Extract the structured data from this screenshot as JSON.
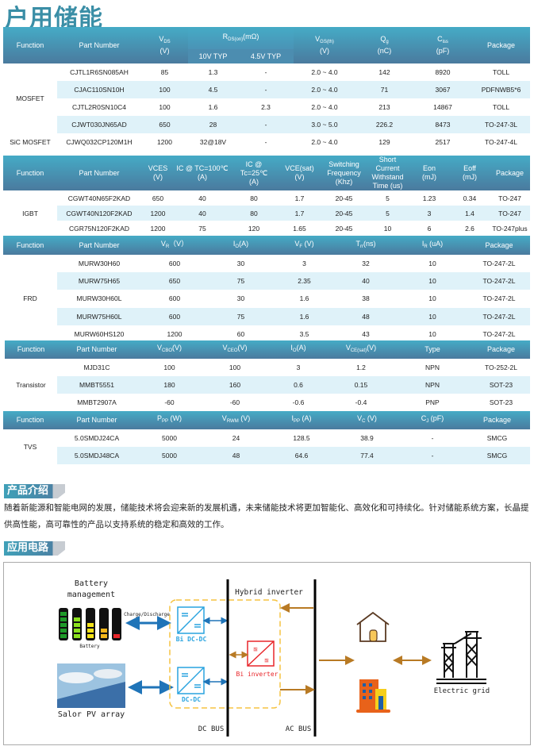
{
  "title": "户用储能",
  "tables": {
    "mosfet": {
      "headers": [
        {
          "lines": [
            [
              {
                "t": "Function"
              }
            ]
          ]
        },
        {
          "lines": [
            [
              {
                "t": "Part  Number"
              }
            ]
          ]
        },
        {
          "lines": [
            [
              {
                "t": "V"
              },
              {
                "t": "DS",
                "sub": true
              }
            ],
            [
              {
                "t": "(V)"
              }
            ]
          ]
        },
        {
          "lines": [
            [
              {
                "t": "R"
              },
              {
                "t": "DS(on)",
                "sub": true
              },
              {
                "t": "(mΩ)"
              }
            ]
          ],
          "children": [
            {
              "lines": [
                [
                  {
                    "t": "10V  TYP"
                  }
                ]
              ]
            },
            {
              "lines": [
                [
                  {
                    "t": "4.5V TYP"
                  }
                ]
              ]
            }
          ]
        },
        {
          "lines": [
            [
              {
                "t": "V"
              },
              {
                "t": "GS(th)",
                "sub": true
              }
            ],
            [
              {
                "t": "(V)"
              }
            ]
          ]
        },
        {
          "lines": [
            [
              {
                "t": "Q"
              },
              {
                "t": "g",
                "sub": true
              }
            ],
            [
              {
                "t": "(nC)"
              }
            ]
          ]
        },
        {
          "lines": [
            [
              {
                "t": "C"
              },
              {
                "t": "iss",
                "sub": true
              }
            ],
            [
              {
                "t": "(pF)"
              }
            ]
          ]
        },
        {
          "lines": [
            [
              {
                "t": "Package"
              }
            ]
          ]
        }
      ],
      "groups": [
        {
          "function": "MOSFET",
          "span": 4
        },
        {
          "function": "SiC MOSFET",
          "span": 1
        }
      ],
      "rows": [
        [
          "CJTL1R6SN085AH",
          "85",
          "1.3",
          "-",
          "2.0 ~ 4.0",
          "142",
          "8920",
          "TOLL"
        ],
        [
          "CJAC110SN10H",
          "100",
          "4.5",
          "-",
          "2.0 ~ 4.0",
          "71",
          "3067",
          "PDFNWB5*6"
        ],
        [
          "CJTL2R0SN10C4",
          "100",
          "1.6",
          "2.3",
          "2.0 ~ 4.0",
          "213",
          "14867",
          "TOLL"
        ],
        [
          "CJWT030JN65AD",
          "650",
          "28",
          "-",
          "3.0 ~ 5.0",
          "226.2",
          "8473",
          "TO-247-3L"
        ],
        [
          "CJWQ032CP120M1H",
          "1200",
          "32@18V",
          "-",
          "2.0 ~ 4.0",
          "129",
          "2517",
          "TO-247-4L"
        ]
      ]
    },
    "igbt": {
      "headers": [
        {
          "lines": [
            [
              {
                "t": "Function"
              }
            ]
          ]
        },
        {
          "lines": [
            [
              {
                "t": "Part Number"
              }
            ]
          ]
        },
        {
          "lines": [
            [
              {
                "t": "VCES"
              }
            ],
            [
              {
                "t": "(V)"
              }
            ]
          ]
        },
        {
          "lines": [
            [
              {
                "t": "IC @ TC=100℃"
              }
            ],
            [
              {
                "t": "(A)"
              }
            ]
          ]
        },
        {
          "lines": [
            [
              {
                "t": "IC @"
              }
            ],
            [
              {
                "t": "Tc=25℃"
              }
            ],
            [
              {
                "t": "(A)"
              }
            ]
          ]
        },
        {
          "lines": [
            [
              {
                "t": "VCE(sat)"
              }
            ],
            [
              {
                "t": "(V)"
              }
            ]
          ]
        },
        {
          "lines": [
            [
              {
                "t": "Switching"
              }
            ],
            [
              {
                "t": "Frequency"
              }
            ],
            [
              {
                "t": "(Khz)"
              }
            ]
          ]
        },
        {
          "lines": [
            [
              {
                "t": "Short"
              }
            ],
            [
              {
                "t": "Current"
              }
            ],
            [
              {
                "t": "Withstand"
              }
            ],
            [
              {
                "t": "Time (us)"
              }
            ]
          ]
        },
        {
          "lines": [
            [
              {
                "t": "Eon"
              }
            ],
            [
              {
                "t": "(mJ)"
              }
            ]
          ]
        },
        {
          "lines": [
            [
              {
                "t": "Eoff"
              }
            ],
            [
              {
                "t": "(mJ)"
              }
            ]
          ]
        },
        {
          "lines": [
            [
              {
                "t": "Package"
              }
            ]
          ]
        }
      ],
      "groups": [
        {
          "function": "IGBT",
          "span": 3
        }
      ],
      "rows": [
        [
          "CGWT40N65F2KAD",
          "650",
          "40",
          "80",
          "1.7",
          "20-45",
          "5",
          "1.23",
          "0.34",
          "TO-247"
        ],
        [
          "CGWT40N120F2KAD",
          "1200",
          "40",
          "80",
          "1.7",
          "20-45",
          "5",
          "3",
          "1.4",
          "TO-247"
        ],
        [
          "CGR75N120F2KAD",
          "1200",
          "75",
          "120",
          "1.65",
          "20-45",
          "10",
          "6",
          "2.6",
          "TO-247plus"
        ]
      ]
    },
    "frd": {
      "headers": [
        {
          "lines": [
            [
              {
                "t": "Function"
              }
            ]
          ]
        },
        {
          "lines": [
            [
              {
                "t": "Part Number"
              }
            ]
          ]
        },
        {
          "lines": [
            [
              {
                "t": "V"
              },
              {
                "t": "R",
                "sub": true
              },
              {
                "t": "（V）"
              }
            ]
          ]
        },
        {
          "lines": [
            [
              {
                "t": "I"
              },
              {
                "t": "O",
                "sub": true
              },
              {
                "t": "(A)"
              }
            ]
          ]
        },
        {
          "lines": [
            [
              {
                "t": "V"
              },
              {
                "t": "F",
                "sub": true
              },
              {
                "t": " (V)"
              }
            ]
          ]
        },
        {
          "lines": [
            [
              {
                "t": "T"
              },
              {
                "t": "rr",
                "sub": true
              },
              {
                "t": "(ns)"
              }
            ]
          ]
        },
        {
          "lines": [
            [
              {
                "t": "I"
              },
              {
                "t": "R",
                "sub": true
              },
              {
                "t": " (uA)"
              }
            ]
          ]
        },
        {
          "lines": [
            [
              {
                "t": "Package"
              }
            ]
          ]
        }
      ],
      "groups": [
        {
          "function": "FRD",
          "span": 5
        }
      ],
      "rows": [
        [
          "MURW30H60",
          "600",
          "30",
          "3",
          "32",
          "10",
          "TO-247-2L"
        ],
        [
          "MURW75H65",
          "650",
          "75",
          "2.35",
          "40",
          "10",
          "TO-247-2L"
        ],
        [
          "MURW30H60L",
          "600",
          "30",
          "1.6",
          "38",
          "10",
          "TO-247-2L"
        ],
        [
          "MURW75H60L",
          "600",
          "75",
          "1.6",
          "48",
          "10",
          "TO-247-2L"
        ],
        [
          "MURW60HS120",
          "1200",
          "60",
          "3.5",
          "43",
          "10",
          "TO-247-2L"
        ]
      ]
    },
    "transistor": {
      "headers": [
        {
          "lines": [
            [
              {
                "t": "Function"
              }
            ]
          ]
        },
        {
          "lines": [
            [
              {
                "t": "Part  Number"
              }
            ]
          ]
        },
        {
          "lines": [
            [
              {
                "t": "V"
              },
              {
                "t": "CBO",
                "sub": true
              },
              {
                "t": "(V)"
              }
            ]
          ]
        },
        {
          "lines": [
            [
              {
                "t": "V"
              },
              {
                "t": "CEO",
                "sub": true
              },
              {
                "t": "(V)"
              }
            ]
          ]
        },
        {
          "lines": [
            [
              {
                "t": "I"
              },
              {
                "t": "O",
                "sub": true
              },
              {
                "t": "(A)"
              }
            ]
          ]
        },
        {
          "lines": [
            [
              {
                "t": "V"
              },
              {
                "t": "CE(sat)",
                "sub": true
              },
              {
                "t": "(V)"
              }
            ]
          ]
        },
        {
          "lines": [
            [
              {
                "t": "Type"
              }
            ]
          ]
        },
        {
          "lines": [
            [
              {
                "t": "Package"
              }
            ]
          ]
        }
      ],
      "groups": [
        {
          "function": "Transistor",
          "span": 3
        }
      ],
      "rows": [
        [
          "MJD31C",
          "100",
          "100",
          "3",
          "1.2",
          "NPN",
          "TO-252-2L"
        ],
        [
          "MMBT5551",
          "180",
          "160",
          "0.6",
          "0.15",
          "NPN",
          "SOT-23"
        ],
        [
          "MMBT2907A",
          "-60",
          "-60",
          "-0.6",
          "-0.4",
          "PNP",
          "SOT-23"
        ]
      ]
    },
    "tvs": {
      "headers": [
        {
          "lines": [
            [
              {
                "t": "Function"
              }
            ]
          ]
        },
        {
          "lines": [
            [
              {
                "t": "Part  Number"
              }
            ]
          ]
        },
        {
          "lines": [
            [
              {
                "t": "P"
              },
              {
                "t": "PP",
                "sub": true
              },
              {
                "t": "  (W)"
              }
            ]
          ]
        },
        {
          "lines": [
            [
              {
                "t": "V"
              },
              {
                "t": "RWM",
                "sub": true
              },
              {
                "t": "  (V)"
              }
            ]
          ]
        },
        {
          "lines": [
            [
              {
                "t": "I"
              },
              {
                "t": "PP",
                "sub": true
              },
              {
                "t": " (A)"
              }
            ]
          ]
        },
        {
          "lines": [
            [
              {
                "t": "V"
              },
              {
                "t": "C",
                "sub": true
              },
              {
                "t": "  (V)"
              }
            ]
          ]
        },
        {
          "lines": [
            [
              {
                "t": "C"
              },
              {
                "t": "J",
                "sub": true
              },
              {
                "t": "  (pF)"
              }
            ]
          ]
        },
        {
          "lines": [
            [
              {
                "t": "Package"
              }
            ]
          ]
        }
      ],
      "groups": [
        {
          "function": "TVS",
          "span": 2
        }
      ],
      "rows": [
        [
          "5.0SMDJ24CA",
          "5000",
          "24",
          "128.5",
          "38.9",
          "-",
          "SMCG"
        ],
        [
          "5.0SMDJ48CA",
          "5000",
          "48",
          "64.6",
          "77.4",
          "-",
          "SMCG"
        ]
      ]
    }
  },
  "intro": {
    "heading": "产品介绍",
    "text": "随着新能源和智能电网的发展，储能技术将会迎来新的发展机遇，未来储能技术将更加智能化、高效化和可持续化。针对储能系统方案，长晶提供高性能，高可靠性的产品以支持系统的稳定和高效的工作。"
  },
  "circuit": {
    "heading": "应用电路",
    "battery_management": [
      "Battery",
      "management"
    ],
    "battery_label": "Battery",
    "charge_discharge": "Charge/Discharge",
    "pv_label": "Salor PV array",
    "bi_dcdc": "Bi DC-DC",
    "dcdc": "DC-DC",
    "hybrid_inverter": "Hybrid inverter",
    "bi_inverter": "Bi inverter",
    "dc_bus": "DC BUS",
    "ac_bus": "AC BUS",
    "electric_grid": "Electric grid",
    "colors": {
      "converter": "#29a3df",
      "inverter": "#e8262a",
      "dc_arrow": "#1f74b8",
      "ac_arrow": "#b87a24",
      "dashed_box": "#f5c342"
    }
  }
}
